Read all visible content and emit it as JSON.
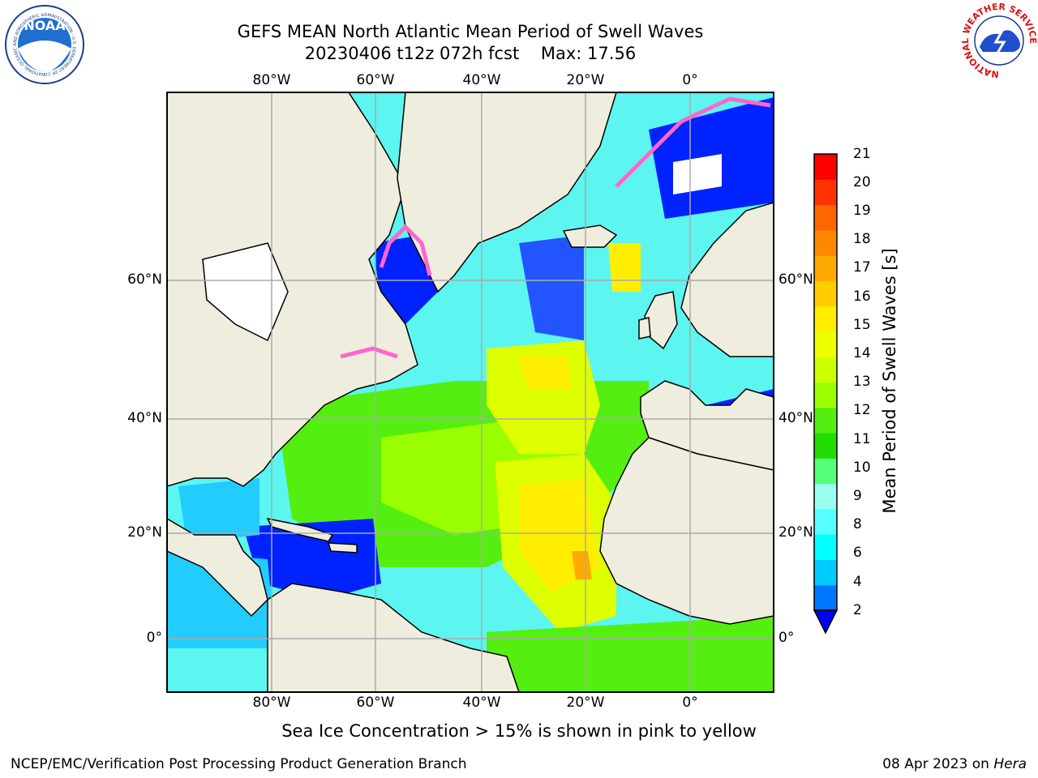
{
  "header": {
    "title_line1": "GEFS MEAN North Atlantic Mean Period of Swell Waves",
    "title_line2": "20230406 t12z 072h fcst    Max: 17.56"
  },
  "map": {
    "top_lon_labels": [
      "80°W",
      "60°W",
      "40°W",
      "20°W",
      "0°"
    ],
    "bottom_lon_labels": [
      "80°W",
      "60°W",
      "40°W",
      "20°W",
      "0°"
    ],
    "left_lat_labels": [
      "60°N",
      "40°N",
      "20°N",
      "0°"
    ],
    "right_lat_labels": [
      "60°N",
      "40°N",
      "20°N",
      "0°"
    ],
    "field_max": 17.56,
    "land_color": "#efedde",
    "ocean_base_color": "#5cf5f0",
    "sea_ice_color": "#ff66cc"
  },
  "colorbar": {
    "title": "Mean Period of Swell Waves [s]",
    "ticks": [
      "21",
      "20",
      "19",
      "18",
      "17",
      "16",
      "15",
      "14",
      "13",
      "12",
      "11",
      "10",
      "9",
      "8",
      "6",
      "4",
      "2"
    ],
    "colors": [
      "#ff0000",
      "#ff3300",
      "#ff6600",
      "#ff8800",
      "#ffaa00",
      "#ffcc00",
      "#ffee00",
      "#eeff00",
      "#ccff00",
      "#99ff00",
      "#55ee11",
      "#22dd00",
      "#55ff77",
      "#99ffee",
      "#55ffff",
      "#00ffff",
      "#00ccff",
      "#0077ff"
    ],
    "extend_color": "#0000ff"
  },
  "note": "Sea Ice Concentration > 15% is shown in pink to yellow",
  "footer": {
    "left": "NCEP/EMC/Verification Post Processing Product Generation Branch",
    "right_date": "08 Apr 2023 on ",
    "right_host": "Hera"
  },
  "logos": {
    "noaa_text": "NOAA",
    "noaa_ring": "NATIONAL OCEANIC AND ATMOSPHERIC ADMINISTRATION · U.S. DEPARTMENT OF COMMERCE",
    "nws_ring": "NATIONAL WEATHER SERVICE"
  }
}
